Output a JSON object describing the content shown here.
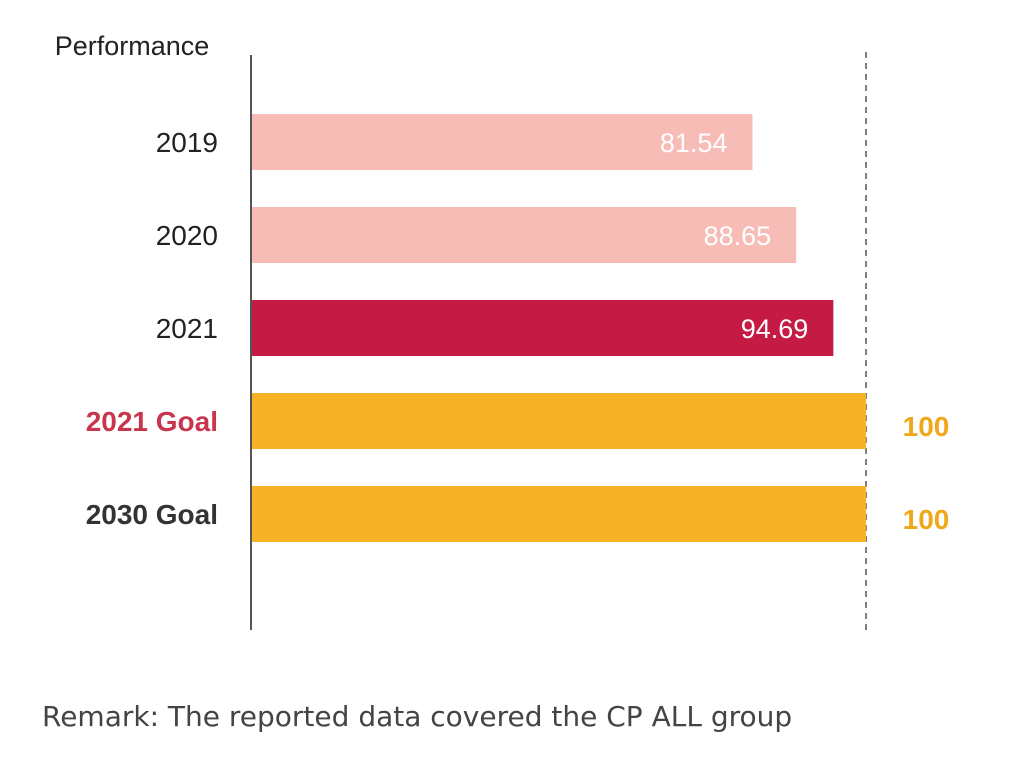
{
  "chart_data": {
    "type": "bar",
    "orientation": "horizontal",
    "ylabel": "Performance",
    "categories": [
      "2019",
      "2020",
      "2021",
      "2021 Goal",
      "2030 Goal"
    ],
    "values": [
      81.54,
      88.65,
      94.69,
      100,
      100
    ],
    "value_labels": [
      "81.54",
      "88.65",
      "94.69",
      "100",
      "100"
    ],
    "xlim": [
      0,
      100
    ],
    "grid": false,
    "reference_line": {
      "value": 100,
      "style": "dashed"
    },
    "bar_colors": [
      "#f8bcb7",
      "#f8bcb7",
      "#c41a43",
      "#f7b326",
      "#f7b326"
    ],
    "label_colors": [
      "#222222",
      "#222222",
      "#222222",
      "#c8354d",
      "#333333"
    ],
    "label_bold": [
      false,
      false,
      false,
      true,
      true
    ],
    "value_label_position": [
      "inside",
      "inside",
      "inside",
      "outside",
      "outside"
    ],
    "value_outside_color": "#f0a818"
  },
  "remark": "Remark: The reported data covered the CP ALL group"
}
